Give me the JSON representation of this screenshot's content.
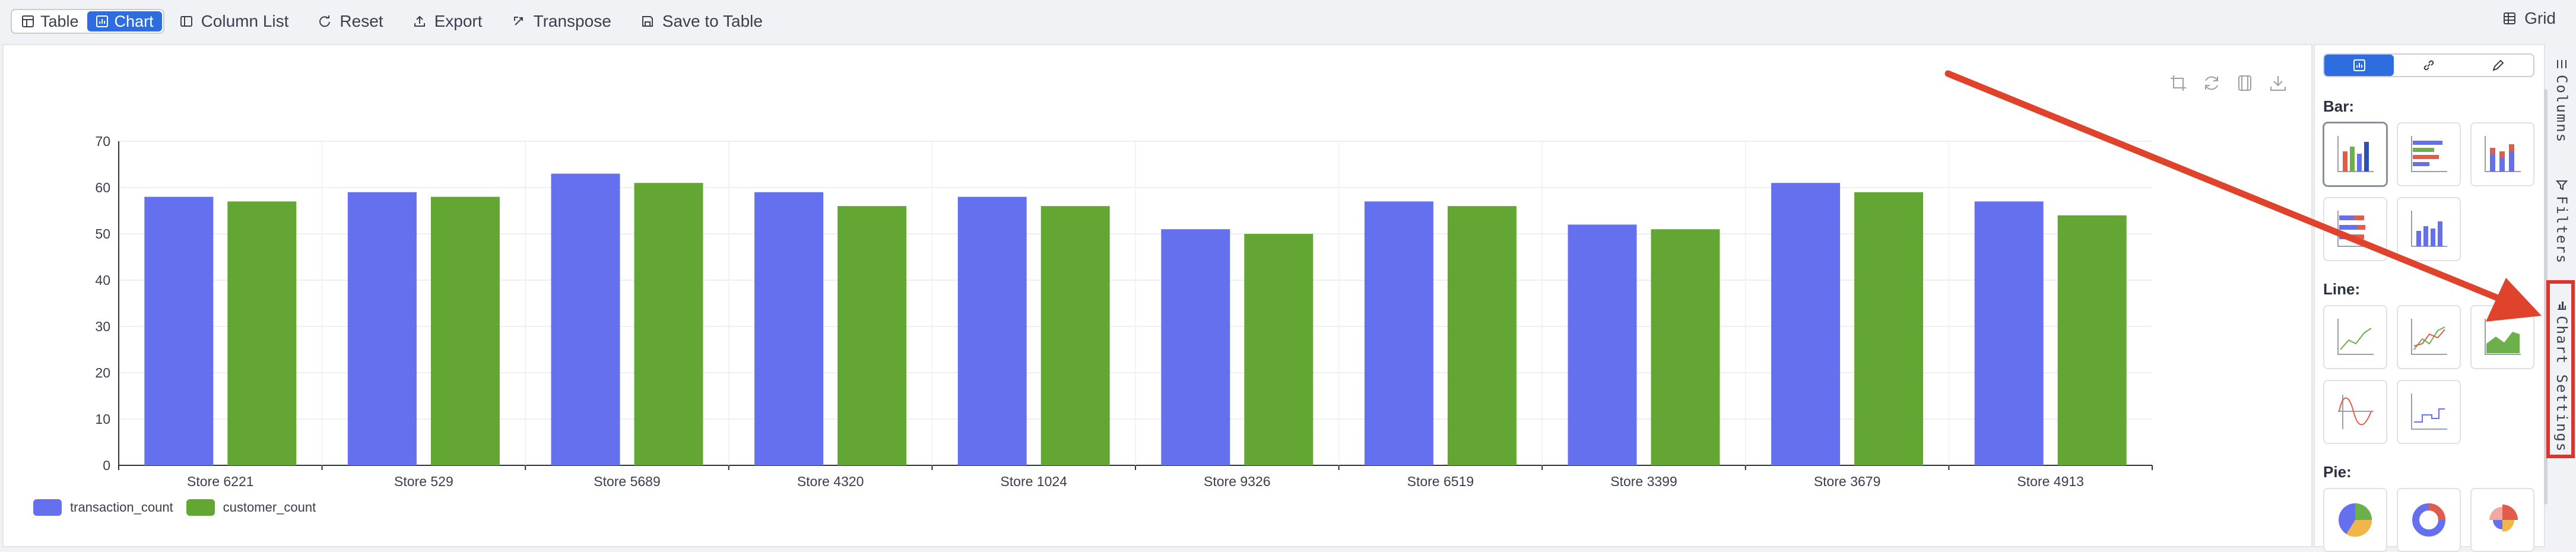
{
  "toolbar": {
    "table_label": "Table",
    "chart_label": "Chart",
    "column_list_label": "Column List",
    "reset_label": "Reset",
    "export_label": "Export",
    "transpose_label": "Transpose",
    "save_to_table_label": "Save to Table",
    "grid_label": "Grid"
  },
  "settings": {
    "bar_title": "Bar:",
    "line_title": "Line:",
    "pie_title": "Pie:"
  },
  "rail": {
    "columns_label": "Columns",
    "filters_label": "Filters",
    "chart_settings_label": "Chart Settings"
  },
  "colors": {
    "series1": "#6570ee",
    "series2": "#63a633",
    "accent": "#2d6de0",
    "annotation": "#e0432b"
  },
  "chart_data": {
    "type": "bar",
    "categories": [
      "Store 6221",
      "Store 529",
      "Store 5689",
      "Store 4320",
      "Store 1024",
      "Store 9326",
      "Store 6519",
      "Store 3399",
      "Store 3679",
      "Store 4913"
    ],
    "series": [
      {
        "name": "transaction_count",
        "values": [
          58,
          59,
          63,
          59,
          58,
          51,
          57,
          52,
          61,
          57
        ]
      },
      {
        "name": "customer_count",
        "values": [
          57,
          58,
          61,
          56,
          56,
          50,
          56,
          51,
          59,
          54
        ]
      }
    ],
    "yticks": [
      "0",
      "10",
      "20",
      "30",
      "40",
      "50",
      "60",
      "70"
    ],
    "ylim": [
      0,
      70
    ],
    "grid": true,
    "legend_position": "bottom-left",
    "title": "",
    "xlabel": "",
    "ylabel": ""
  }
}
